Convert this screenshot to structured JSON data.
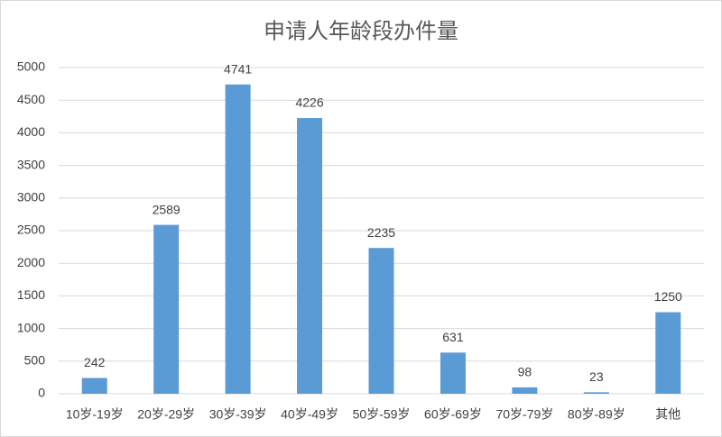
{
  "chart_data": {
    "type": "bar",
    "title": "申请人年龄段办件量",
    "categories": [
      "10岁-19岁",
      "20岁-29岁",
      "30岁-39岁",
      "40岁-49岁",
      "50岁-59岁",
      "60岁-69岁",
      "70岁-79岁",
      "80岁-89岁",
      "其他"
    ],
    "values": [
      242,
      2589,
      4741,
      4226,
      2235,
      631,
      98,
      23,
      1250
    ],
    "color": "#5b9bd5",
    "ylim": [
      0,
      5000
    ],
    "yticks": [
      0,
      500,
      1000,
      1500,
      2000,
      2500,
      3000,
      3500,
      4000,
      4500,
      5000
    ],
    "grid": true
  }
}
